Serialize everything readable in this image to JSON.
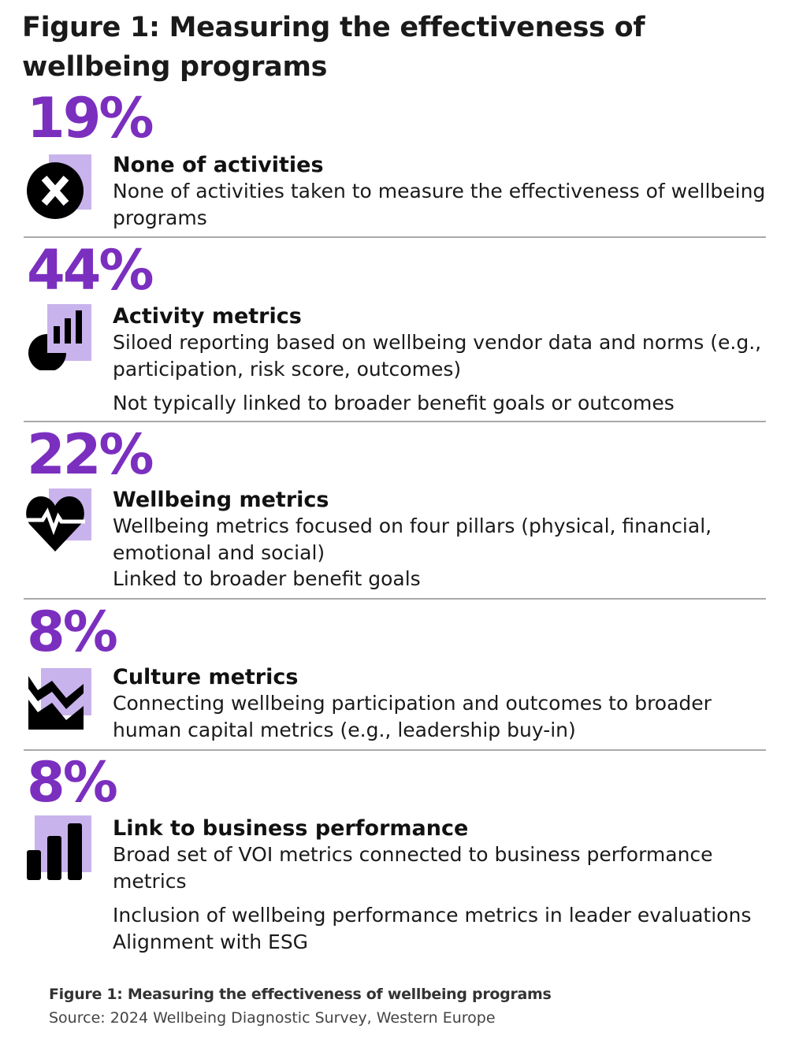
{
  "title": "Figure 1: Measuring the effectiveness of wellbeing programs",
  "colors": {
    "accent": "#7b2fbf",
    "icon_bg": "#c9b3ec",
    "icon_fg": "#000000",
    "divider": "#a9a9a9"
  },
  "sections": [
    {
      "percent": "19%",
      "icon": "x-circle-icon",
      "heading": "None of activities",
      "lines": [
        "None of activities taken to measure the effectiveness of wellbeing programs"
      ]
    },
    {
      "percent": "44%",
      "icon": "pie-bar-chart-icon",
      "heading": "Activity metrics",
      "lines": [
        "Siloed reporting based on wellbeing vendor data and norms (e.g., participation, risk score, outcomes)",
        "Not typically linked to broader benefit goals or outcomes"
      ]
    },
    {
      "percent": "22%",
      "icon": "heartbeat-icon",
      "heading": "Wellbeing metrics",
      "lines": [
        "Wellbeing metrics focused on four pillars (physical, financial, emotional and social)",
        "Linked to broader benefit goals"
      ]
    },
    {
      "percent": "8%",
      "icon": "area-chart-icon",
      "heading": "Culture metrics",
      "lines": [
        "Connecting wellbeing participation and outcomes to broader human capital metrics (e.g., leadership buy-in)"
      ]
    },
    {
      "percent": "8%",
      "icon": "bar-chart-icon",
      "heading": "Link to business performance",
      "lines": [
        "Broad set of VOI metrics connected to business performance metrics",
        "Inclusion of wellbeing performance metrics in leader evaluations",
        "Alignment with ESG"
      ]
    }
  ],
  "caption": {
    "title": "Figure 1: Measuring the effectiveness of wellbeing programs",
    "source": "Source: 2024 Wellbeing Diagnostic Survey, Western Europe"
  }
}
